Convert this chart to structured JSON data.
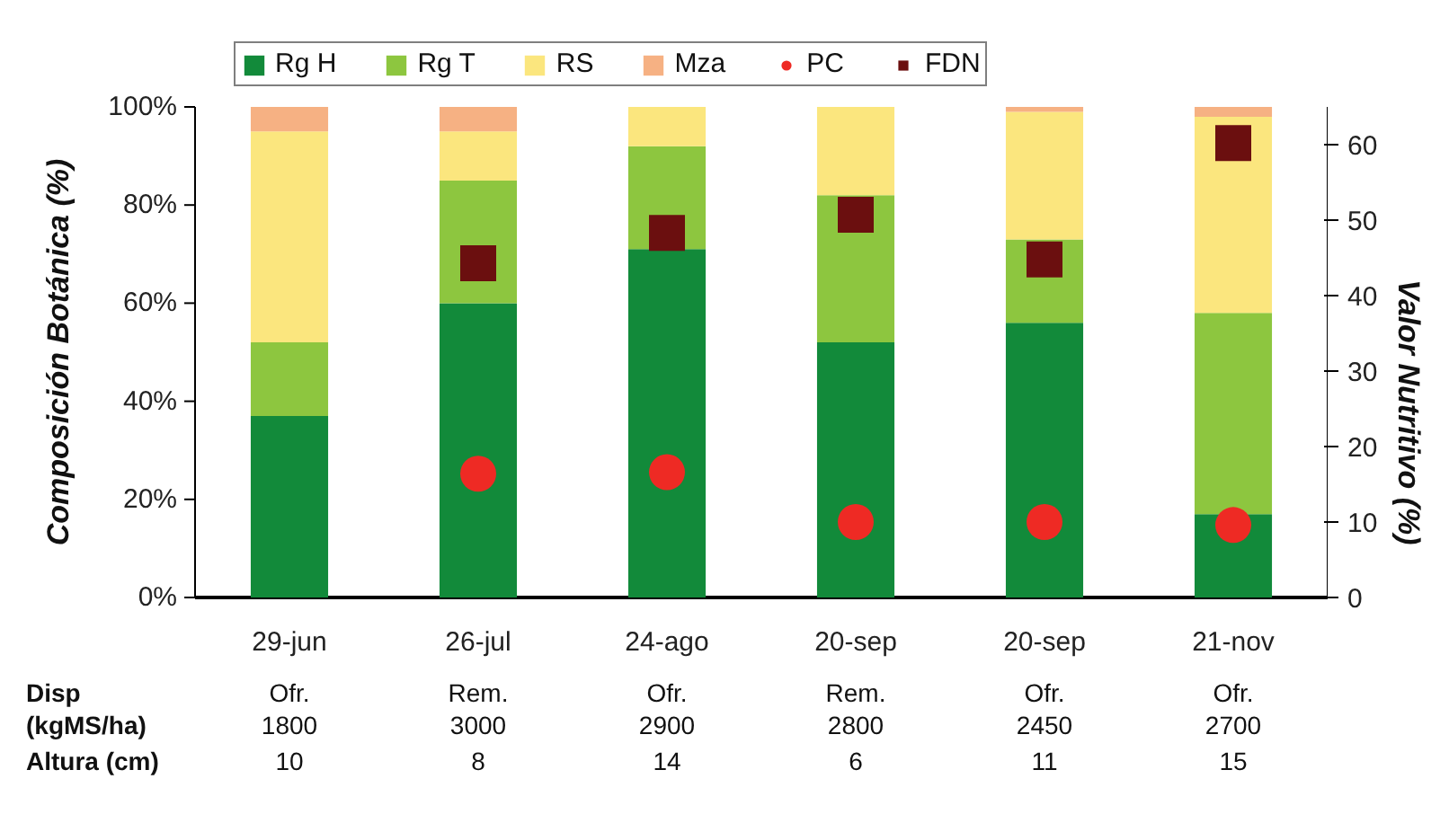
{
  "chart_data": {
    "type": "bar",
    "stacked": true,
    "ylabel": "Composición Botánica (%)",
    "y2label": "Valor Nutritivo (%)",
    "categories": [
      "29-jun",
      "26-jul",
      "24-ago",
      "20-sep",
      "20-sep",
      "21-nov"
    ],
    "series": [
      {
        "name": "Rg H",
        "type": "bar",
        "color": "#128a3a",
        "values": [
          37,
          60,
          71,
          52,
          56,
          17
        ]
      },
      {
        "name": "Rg T",
        "type": "bar",
        "color": "#8dc63f",
        "values": [
          15,
          25,
          21,
          30,
          17,
          41
        ]
      },
      {
        "name": "RS",
        "type": "bar",
        "color": "#fbe67e",
        "values": [
          43,
          10,
          8,
          18,
          26,
          40
        ]
      },
      {
        "name": "Mza",
        "type": "bar",
        "color": "#f6b183",
        "values": [
          5,
          5,
          0,
          0,
          1,
          2
        ]
      },
      {
        "name": "PC",
        "type": "scatter",
        "axis": "y2",
        "marker": "circle",
        "color": "#ee2a24",
        "values": [
          null,
          16.4,
          16.6,
          10,
          10,
          9.6
        ]
      },
      {
        "name": "FDN",
        "type": "scatter",
        "axis": "y2",
        "marker": "square",
        "color": "#6b0f0f",
        "values": [
          null,
          44.3,
          48.3,
          50.7,
          44.8,
          60.2
        ]
      }
    ],
    "ylim": [
      0,
      100
    ],
    "yticks": [
      {
        "value": 0,
        "label": "0%"
      },
      {
        "value": 20,
        "label": "20%"
      },
      {
        "value": 40,
        "label": "40%"
      },
      {
        "value": 60,
        "label": "60%"
      },
      {
        "value": 80,
        "label": "80%"
      },
      {
        "value": 100,
        "label": "100%"
      }
    ],
    "y2lim": [
      0,
      65
    ],
    "y2ticks": [
      0,
      10,
      20,
      30,
      40,
      50,
      60
    ],
    "legend": "top",
    "grid": false,
    "annotations": [
      "Disp",
      "Ofr.",
      "Rem.",
      "Ofr.",
      "Rem.",
      "Ofr.",
      "Ofr.",
      "(kgMS/ha)",
      "1800",
      "3000",
      "2900",
      "2800",
      "2450",
      "2700",
      "Altura (cm)",
      "10",
      "8",
      "14",
      "6",
      "11",
      "15"
    ]
  }
}
